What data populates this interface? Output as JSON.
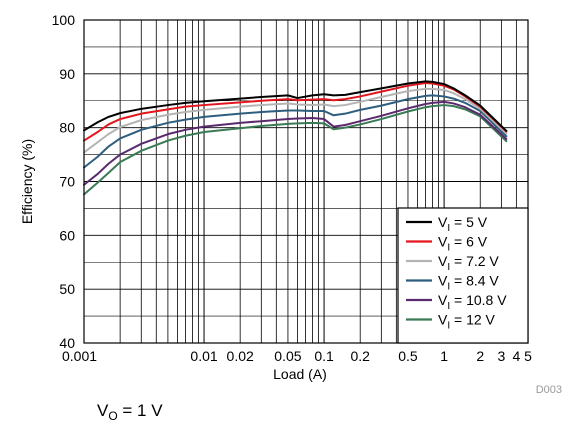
{
  "chart_data": {
    "type": "line",
    "xlabel": "Load (A)",
    "ylabel": "Efficiency (%)",
    "xscale": "log",
    "xlim": [
      0.001,
      5
    ],
    "ylim": [
      40,
      100
    ],
    "grid": true,
    "legend_position": "bottom-right",
    "x_tick_labels": [
      {
        "value": 0.001,
        "label": "0.001"
      },
      {
        "value": 0.01,
        "label": "0.01"
      },
      {
        "value": 0.02,
        "label": "0.02"
      },
      {
        "value": 0.05,
        "label": "0.05"
      },
      {
        "value": 0.1,
        "label": "0.1"
      },
      {
        "value": 0.2,
        "label": "0.2"
      },
      {
        "value": 0.5,
        "label": "0.5"
      },
      {
        "value": 1,
        "label": "1"
      },
      {
        "value": 2,
        "label": "2"
      },
      {
        "value": 3,
        "label": "3"
      },
      {
        "value": 4,
        "label": "4"
      },
      {
        "value": 5,
        "label": "5"
      }
    ],
    "y_ticks": [
      40,
      50,
      60,
      70,
      80,
      90,
      100
    ],
    "series": [
      {
        "name_main": "V",
        "name_sub": "I",
        "name_rest": " = 5 V",
        "color": "#000000",
        "x": [
          0.001,
          0.0013,
          0.0016,
          0.002,
          0.003,
          0.005,
          0.007,
          0.01,
          0.02,
          0.03,
          0.05,
          0.06,
          0.08,
          0.1,
          0.12,
          0.15,
          0.2,
          0.3,
          0.5,
          0.7,
          0.8,
          1,
          1.2,
          1.5,
          2,
          3.3
        ],
        "y": [
          79.5,
          81,
          82,
          82.7,
          83.5,
          84.2,
          84.6,
          84.9,
          85.4,
          85.7,
          86.0,
          85.5,
          86.0,
          86.2,
          86.0,
          86.1,
          86.6,
          87.3,
          88.2,
          88.6,
          88.5,
          88.1,
          87.3,
          86.0,
          84.1,
          79.4
        ]
      },
      {
        "name_main": "V",
        "name_sub": "I",
        "name_rest": " = 6 V",
        "color": "#e3161e",
        "x": [
          0.001,
          0.0013,
          0.0016,
          0.002,
          0.003,
          0.005,
          0.007,
          0.01,
          0.02,
          0.03,
          0.05,
          0.06,
          0.08,
          0.1,
          0.12,
          0.15,
          0.2,
          0.3,
          0.5,
          0.7,
          0.8,
          1,
          1.2,
          1.5,
          2,
          3.3
        ],
        "y": [
          77.6,
          79.2,
          80.6,
          81.6,
          82.6,
          83.4,
          83.9,
          84.2,
          84.7,
          85.0,
          85.3,
          85.1,
          85.2,
          85.3,
          85.1,
          85.3,
          85.8,
          86.7,
          87.8,
          88.3,
          88.2,
          87.8,
          87.1,
          85.8,
          83.9,
          79.3
        ]
      },
      {
        "name_main": "V",
        "name_sub": "I",
        "name_rest": " = 7.2 V",
        "color": "#b4b4b4",
        "x": [
          0.001,
          0.0013,
          0.0016,
          0.002,
          0.003,
          0.005,
          0.007,
          0.01,
          0.02,
          0.03,
          0.05,
          0.06,
          0.08,
          0.1,
          0.12,
          0.15,
          0.2,
          0.3,
          0.5,
          0.7,
          0.8,
          1,
          1.2,
          1.5,
          2,
          3.3
        ],
        "y": [
          75.4,
          77.3,
          78.8,
          80.1,
          81.4,
          82.4,
          82.9,
          83.3,
          83.9,
          84.2,
          84.5,
          84.3,
          84.2,
          84.3,
          84.0,
          84.2,
          84.8,
          85.7,
          86.8,
          87.2,
          87.2,
          87.0,
          86.4,
          85.3,
          83.5,
          78.9
        ]
      },
      {
        "name_main": "V",
        "name_sub": "I",
        "name_rest": " = 8.4 V",
        "color": "#2e5e7e",
        "x": [
          0.001,
          0.0013,
          0.0016,
          0.002,
          0.003,
          0.005,
          0.007,
          0.01,
          0.02,
          0.03,
          0.05,
          0.06,
          0.08,
          0.1,
          0.12,
          0.15,
          0.2,
          0.3,
          0.5,
          0.7,
          0.8,
          1,
          1.2,
          1.5,
          2,
          3.3
        ],
        "y": [
          72.6,
          74.6,
          76.5,
          78.0,
          79.6,
          80.9,
          81.5,
          82.0,
          82.6,
          82.9,
          83.2,
          83.2,
          83.1,
          83.1,
          82.3,
          82.6,
          83.3,
          84.1,
          85.3,
          85.9,
          86.0,
          85.8,
          85.4,
          84.6,
          83.1,
          78.4
        ]
      },
      {
        "name_main": "V",
        "name_sub": "I",
        "name_rest": " = 10.8 V",
        "color": "#5a2a6e",
        "x": [
          0.001,
          0.0013,
          0.0016,
          0.002,
          0.003,
          0.005,
          0.007,
          0.01,
          0.02,
          0.03,
          0.05,
          0.06,
          0.08,
          0.1,
          0.12,
          0.15,
          0.2,
          0.3,
          0.5,
          0.7,
          0.8,
          1,
          1.2,
          1.5,
          2,
          3.3
        ],
        "y": [
          69.4,
          71.4,
          73.3,
          75.0,
          77.0,
          78.8,
          79.6,
          80.2,
          80.9,
          81.2,
          81.6,
          81.7,
          81.8,
          81.6,
          80.2,
          80.5,
          81.2,
          82.2,
          83.6,
          84.4,
          84.6,
          84.8,
          84.5,
          83.8,
          82.4,
          77.9
        ]
      },
      {
        "name_main": "V",
        "name_sub": "I",
        "name_rest": " = 12 V",
        "color": "#3a7a55",
        "x": [
          0.001,
          0.0013,
          0.0016,
          0.002,
          0.003,
          0.005,
          0.007,
          0.01,
          0.02,
          0.03,
          0.05,
          0.06,
          0.08,
          0.1,
          0.12,
          0.15,
          0.2,
          0.3,
          0.5,
          0.7,
          0.8,
          1,
          1.2,
          1.5,
          2,
          3.3
        ],
        "y": [
          67.6,
          69.8,
          71.6,
          73.6,
          75.7,
          77.6,
          78.5,
          79.2,
          79.9,
          80.3,
          80.7,
          80.8,
          80.9,
          80.8,
          79.7,
          80.0,
          80.6,
          81.6,
          83.0,
          83.8,
          84.0,
          84.2,
          84.0,
          83.4,
          82.1,
          77.5
        ]
      }
    ]
  },
  "figure_id": "D003",
  "vo_label": {
    "main": "V",
    "sub": "O",
    "rest": " = 1 V"
  }
}
